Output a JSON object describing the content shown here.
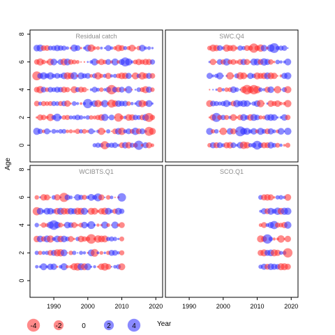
{
  "chart_data": {
    "type": "scatter",
    "ylabel": "Age",
    "xlabel": "Year",
    "xlim": [
      1983,
      2022
    ],
    "ylim": [
      -1.2,
      8.3
    ],
    "xticks": [
      "1990",
      "2000",
      "2010",
      "2020"
    ],
    "yticks": [
      "0",
      "2",
      "4",
      "6",
      "8"
    ],
    "grid": false,
    "colors": {
      "negative": "#ff2a2a",
      "positive": "#2a2aff"
    },
    "panels": [
      {
        "name": "Residual catch",
        "years": [
          1985,
          2019
        ],
        "ages": [
          0,
          1,
          2,
          3,
          4,
          5,
          6,
          7
        ],
        "age0_from": 2002
      },
      {
        "name": "SWC.Q4",
        "years": [
          1996,
          2019
        ],
        "ages": [
          0,
          1,
          2,
          3,
          4,
          5,
          6,
          7
        ]
      },
      {
        "name": "WCIBTS.Q1",
        "years": [
          1985,
          2010
        ],
        "ages": [
          1,
          2,
          3,
          4,
          5,
          6
        ]
      },
      {
        "name": "SCO.Q1",
        "years": [
          2011,
          2019
        ],
        "ages": [
          1,
          2,
          3,
          4,
          5,
          6
        ]
      }
    ],
    "legend": {
      "position": "bottom",
      "items": [
        {
          "label": "-4",
          "value": -4
        },
        {
          "label": "-2",
          "value": -2
        },
        {
          "label": "0",
          "value": 0
        },
        {
          "label": "2",
          "value": 2
        },
        {
          "label": "4",
          "value": 4
        }
      ]
    }
  }
}
